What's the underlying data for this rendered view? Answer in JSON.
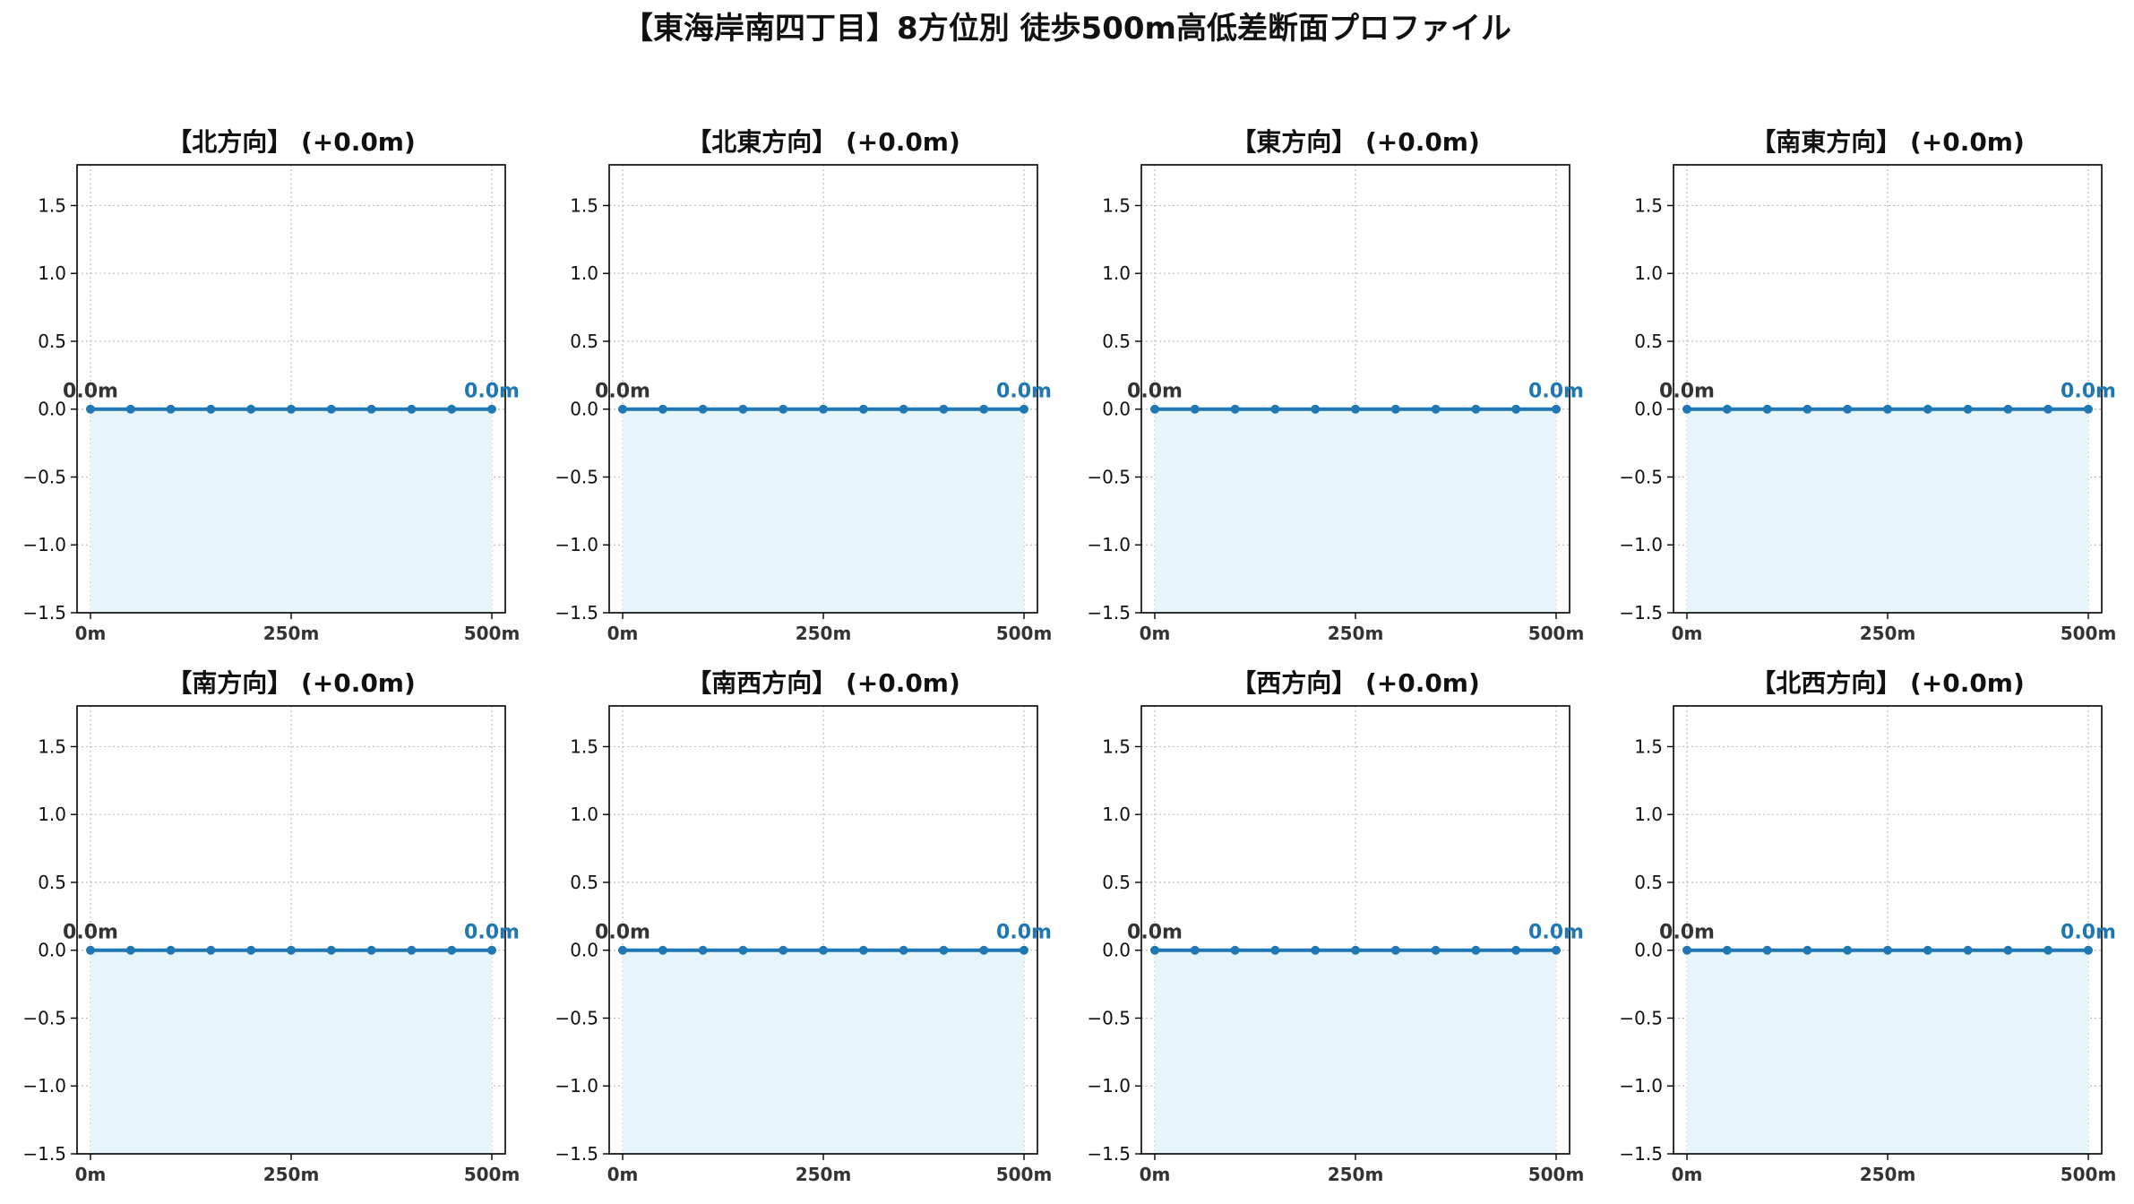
{
  "figure": {
    "title": "【東海岸南四丁目】8方位別 徒歩500m高低差断面プロファイル"
  },
  "colors": {
    "line": "#1f77b4",
    "fill": "#e6f5fb",
    "grid": "#bdbdbd",
    "end_label": "#1f77b4",
    "start_label": "#333333",
    "axis": "#000000"
  },
  "chart_data": [
    {
      "type": "line",
      "title": "【北方向】 (+0.0m)",
      "x": [
        0,
        50,
        100,
        150,
        200,
        250,
        300,
        350,
        400,
        450,
        500
      ],
      "values": [
        0,
        0,
        0,
        0,
        0,
        0,
        0,
        0,
        0,
        0,
        0
      ],
      "start_label": "0.0m",
      "end_label": "0.0m",
      "ylim": [
        -1.5,
        1.8
      ],
      "yticks": [
        -1.5,
        -1.0,
        -0.5,
        0.0,
        0.5,
        1.0,
        1.5
      ],
      "ytick_labels": [
        "−1.5",
        "−1.0",
        "−0.5",
        "0.0",
        "0.5",
        "1.0",
        "1.5"
      ],
      "xticks": [
        0,
        250,
        500
      ],
      "xtick_labels": [
        "0m",
        "250m",
        "500m"
      ],
      "grid": true
    },
    {
      "type": "line",
      "title": "【北東方向】 (+0.0m)",
      "x": [
        0,
        50,
        100,
        150,
        200,
        250,
        300,
        350,
        400,
        450,
        500
      ],
      "values": [
        0,
        0,
        0,
        0,
        0,
        0,
        0,
        0,
        0,
        0,
        0
      ],
      "start_label": "0.0m",
      "end_label": "0.0m",
      "ylim": [
        -1.5,
        1.8
      ],
      "yticks": [
        -1.5,
        -1.0,
        -0.5,
        0.0,
        0.5,
        1.0,
        1.5
      ],
      "ytick_labels": [
        "−1.5",
        "−1.0",
        "−0.5",
        "0.0",
        "0.5",
        "1.0",
        "1.5"
      ],
      "xticks": [
        0,
        250,
        500
      ],
      "xtick_labels": [
        "0m",
        "250m",
        "500m"
      ],
      "grid": true
    },
    {
      "type": "line",
      "title": "【東方向】 (+0.0m)",
      "x": [
        0,
        50,
        100,
        150,
        200,
        250,
        300,
        350,
        400,
        450,
        500
      ],
      "values": [
        0,
        0,
        0,
        0,
        0,
        0,
        0,
        0,
        0,
        0,
        0
      ],
      "start_label": "0.0m",
      "end_label": "0.0m",
      "ylim": [
        -1.5,
        1.8
      ],
      "yticks": [
        -1.5,
        -1.0,
        -0.5,
        0.0,
        0.5,
        1.0,
        1.5
      ],
      "ytick_labels": [
        "−1.5",
        "−1.0",
        "−0.5",
        "0.0",
        "0.5",
        "1.0",
        "1.5"
      ],
      "xticks": [
        0,
        250,
        500
      ],
      "xtick_labels": [
        "0m",
        "250m",
        "500m"
      ],
      "grid": true
    },
    {
      "type": "line",
      "title": "【南東方向】 (+0.0m)",
      "x": [
        0,
        50,
        100,
        150,
        200,
        250,
        300,
        350,
        400,
        450,
        500
      ],
      "values": [
        0,
        0,
        0,
        0,
        0,
        0,
        0,
        0,
        0,
        0,
        0
      ],
      "start_label": "0.0m",
      "end_label": "0.0m",
      "ylim": [
        -1.5,
        1.8
      ],
      "yticks": [
        -1.5,
        -1.0,
        -0.5,
        0.0,
        0.5,
        1.0,
        1.5
      ],
      "ytick_labels": [
        "−1.5",
        "−1.0",
        "−0.5",
        "0.0",
        "0.5",
        "1.0",
        "1.5"
      ],
      "xticks": [
        0,
        250,
        500
      ],
      "xtick_labels": [
        "0m",
        "250m",
        "500m"
      ],
      "grid": true
    },
    {
      "type": "line",
      "title": "【南方向】 (+0.0m)",
      "x": [
        0,
        50,
        100,
        150,
        200,
        250,
        300,
        350,
        400,
        450,
        500
      ],
      "values": [
        0,
        0,
        0,
        0,
        0,
        0,
        0,
        0,
        0,
        0,
        0
      ],
      "start_label": "0.0m",
      "end_label": "0.0m",
      "ylim": [
        -1.5,
        1.8
      ],
      "yticks": [
        -1.5,
        -1.0,
        -0.5,
        0.0,
        0.5,
        1.0,
        1.5
      ],
      "ytick_labels": [
        "−1.5",
        "−1.0",
        "−0.5",
        "0.0",
        "0.5",
        "1.0",
        "1.5"
      ],
      "xticks": [
        0,
        250,
        500
      ],
      "xtick_labels": [
        "0m",
        "250m",
        "500m"
      ],
      "grid": true
    },
    {
      "type": "line",
      "title": "【南西方向】 (+0.0m)",
      "x": [
        0,
        50,
        100,
        150,
        200,
        250,
        300,
        350,
        400,
        450,
        500
      ],
      "values": [
        0,
        0,
        0,
        0,
        0,
        0,
        0,
        0,
        0,
        0,
        0
      ],
      "start_label": "0.0m",
      "end_label": "0.0m",
      "ylim": [
        -1.5,
        1.8
      ],
      "yticks": [
        -1.5,
        -1.0,
        -0.5,
        0.0,
        0.5,
        1.0,
        1.5
      ],
      "ytick_labels": [
        "−1.5",
        "−1.0",
        "−0.5",
        "0.0",
        "0.5",
        "1.0",
        "1.5"
      ],
      "xticks": [
        0,
        250,
        500
      ],
      "xtick_labels": [
        "0m",
        "250m",
        "500m"
      ],
      "grid": true
    },
    {
      "type": "line",
      "title": "【西方向】 (+0.0m)",
      "x": [
        0,
        50,
        100,
        150,
        200,
        250,
        300,
        350,
        400,
        450,
        500
      ],
      "values": [
        0,
        0,
        0,
        0,
        0,
        0,
        0,
        0,
        0,
        0,
        0
      ],
      "start_label": "0.0m",
      "end_label": "0.0m",
      "ylim": [
        -1.5,
        1.8
      ],
      "yticks": [
        -1.5,
        -1.0,
        -0.5,
        0.0,
        0.5,
        1.0,
        1.5
      ],
      "ytick_labels": [
        "−1.5",
        "−1.0",
        "−0.5",
        "0.0",
        "0.5",
        "1.0",
        "1.5"
      ],
      "xticks": [
        0,
        250,
        500
      ],
      "xtick_labels": [
        "0m",
        "250m",
        "500m"
      ],
      "grid": true
    },
    {
      "type": "line",
      "title": "【北西方向】 (+0.0m)",
      "x": [
        0,
        50,
        100,
        150,
        200,
        250,
        300,
        350,
        400,
        450,
        500
      ],
      "values": [
        0,
        0,
        0,
        0,
        0,
        0,
        0,
        0,
        0,
        0,
        0
      ],
      "start_label": "0.0m",
      "end_label": "0.0m",
      "ylim": [
        -1.5,
        1.8
      ],
      "yticks": [
        -1.5,
        -1.0,
        -0.5,
        0.0,
        0.5,
        1.0,
        1.5
      ],
      "ytick_labels": [
        "−1.5",
        "−1.0",
        "−0.5",
        "0.0",
        "0.5",
        "1.0",
        "1.5"
      ],
      "xticks": [
        0,
        250,
        500
      ],
      "xtick_labels": [
        "0m",
        "250m",
        "500m"
      ],
      "grid": true
    }
  ]
}
